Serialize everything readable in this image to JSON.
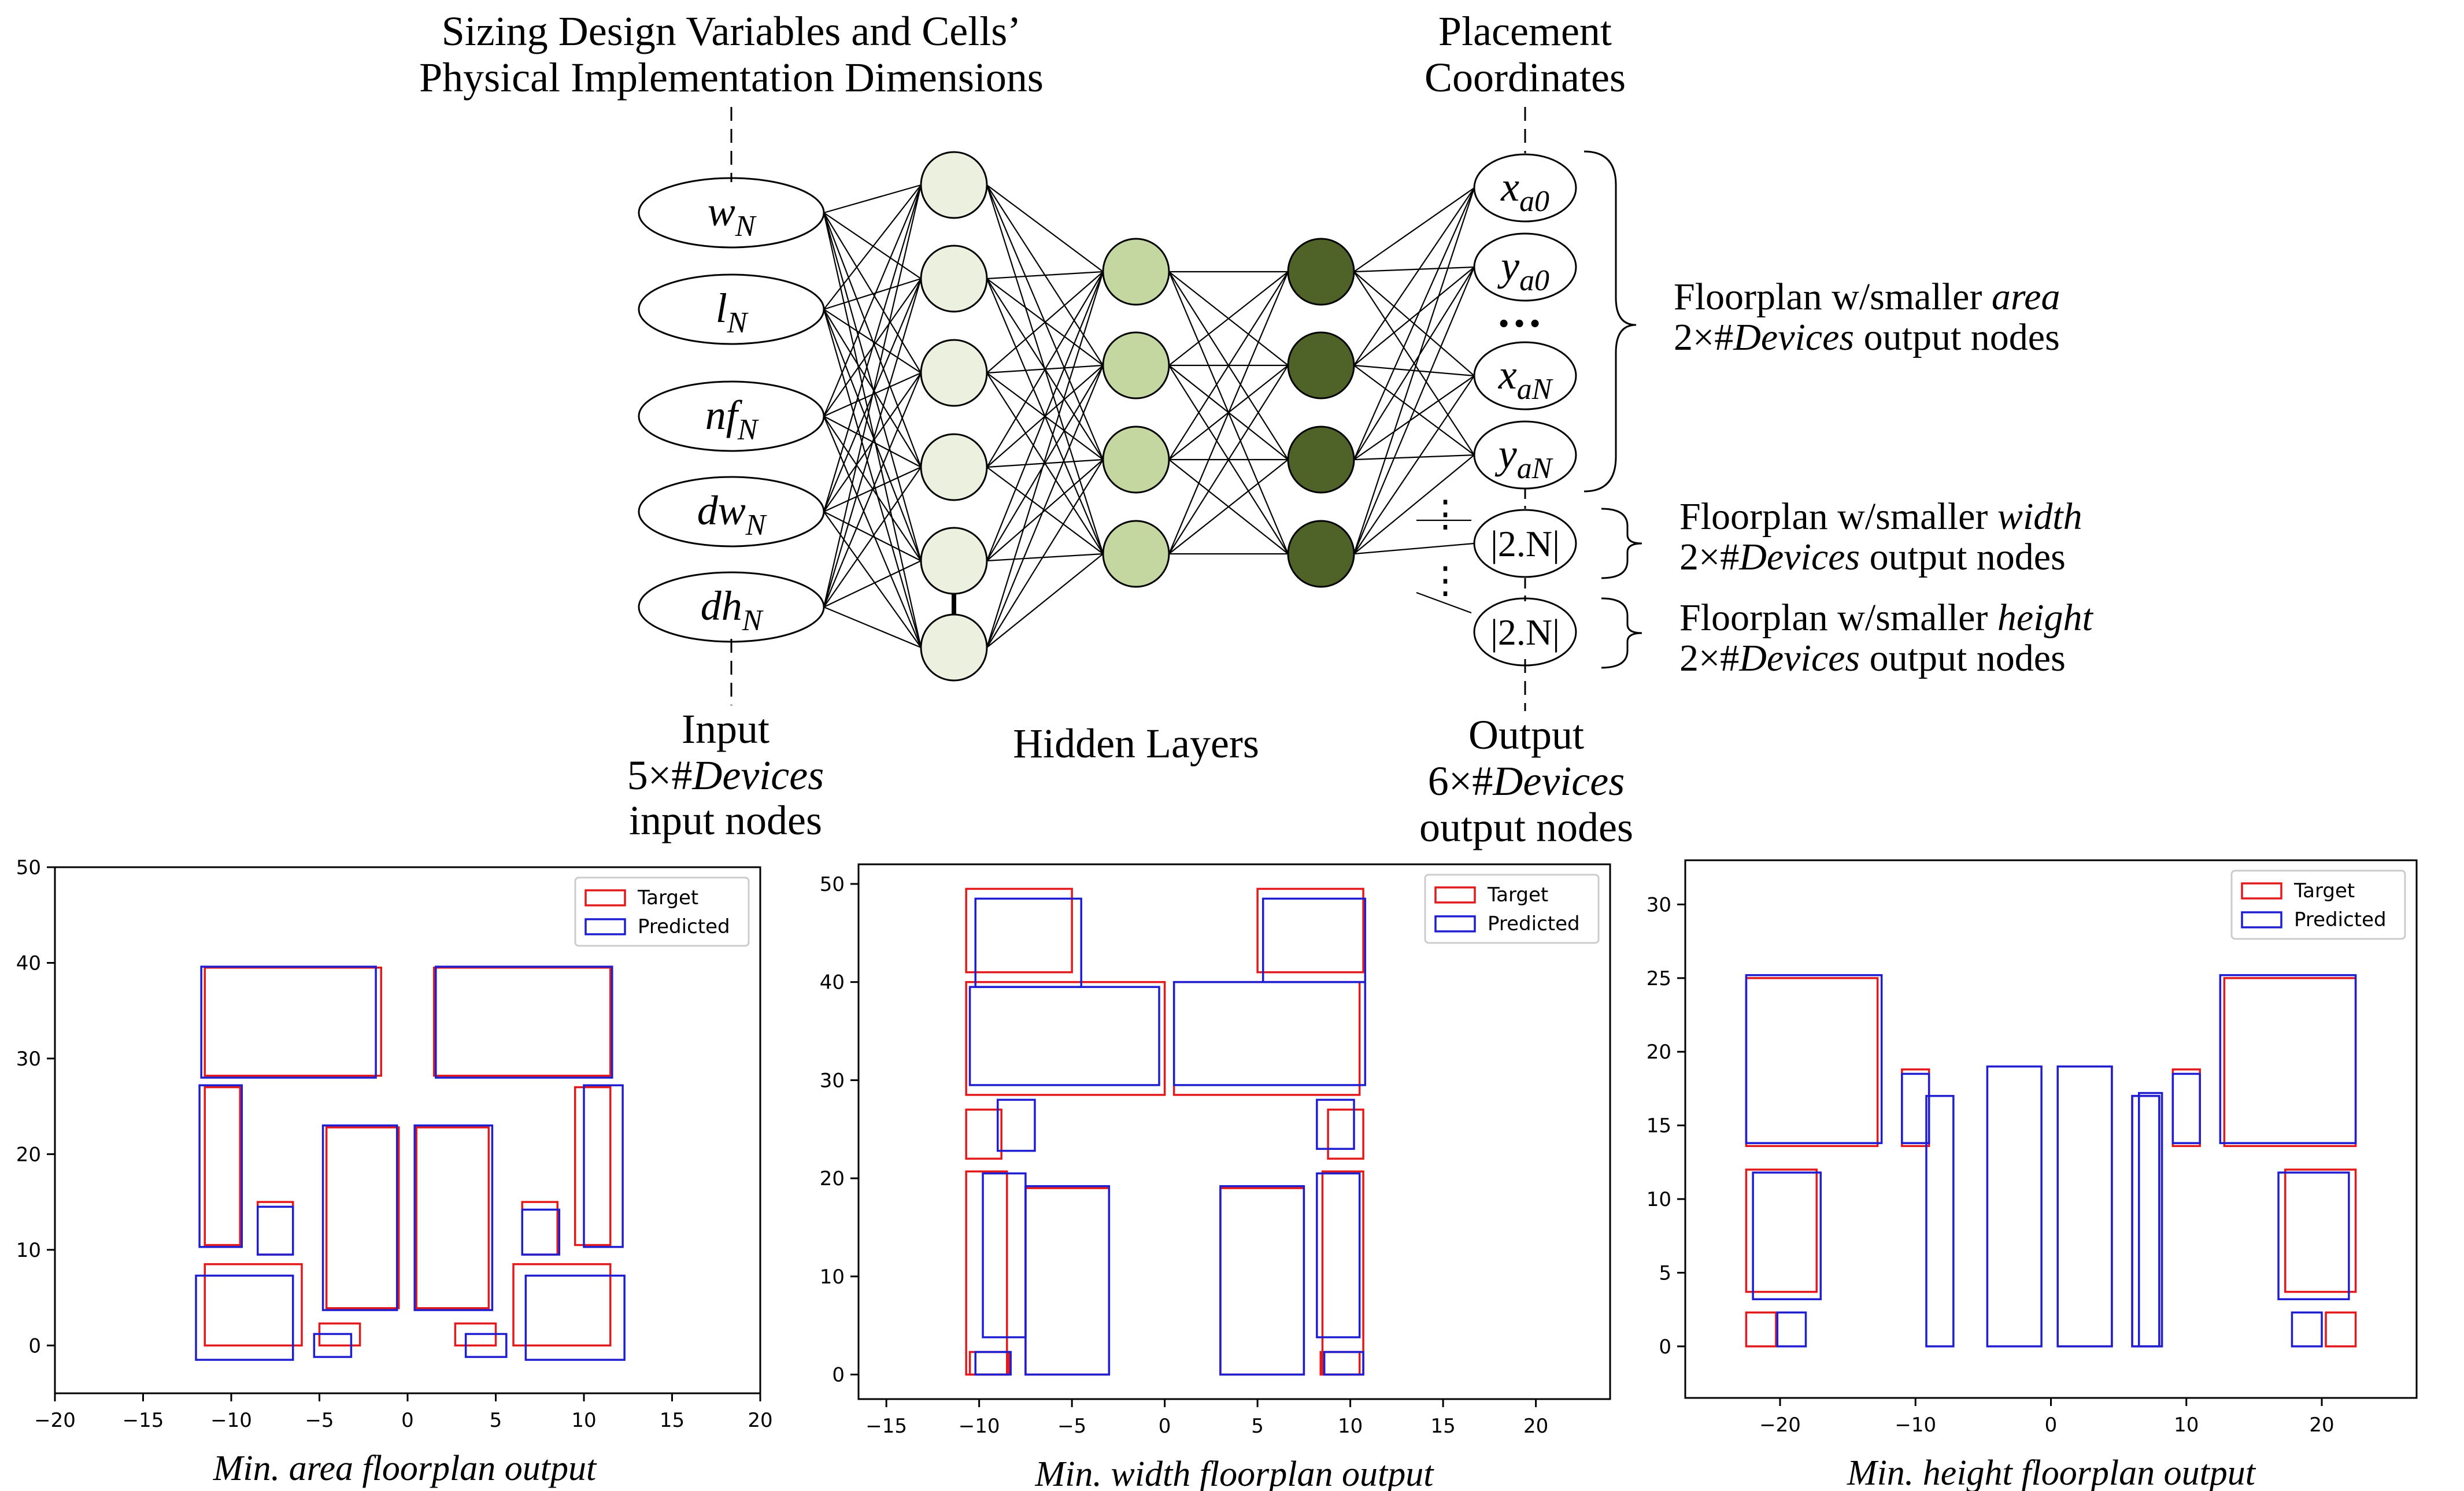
{
  "network": {
    "input_header": [
      "Sizing Design Variables and Cells’",
      "Physical Implementation Dimensions"
    ],
    "output_header": [
      "Placement",
      "Coordinates"
    ],
    "input_nodes": [
      {
        "base": "w",
        "sub": "N"
      },
      {
        "base": "l",
        "sub": "N"
      },
      {
        "base": "nf",
        "sub": "N"
      },
      {
        "base": "dw",
        "sub": "N"
      },
      {
        "base": "dh",
        "sub": "N"
      }
    ],
    "output_nodes": [
      {
        "base": "x",
        "sub": "a0"
      },
      {
        "base": "y",
        "sub": "a0"
      },
      {
        "base": "x",
        "sub": "aN"
      },
      {
        "base": "y",
        "sub": "aN"
      },
      {
        "base": "|2.N|",
        "sub": ""
      },
      {
        "base": "|2.N|",
        "sub": ""
      }
    ],
    "ellipsis_h": "…",
    "ellipsis_v": "⋮",
    "input_caption": {
      "line1": "Input",
      "line2_pre": "5×#",
      "line2_it": "Devices",
      "line3": "input nodes"
    },
    "hidden_caption": "Hidden Layers",
    "output_caption": {
      "line1": "Output",
      "line2_pre": "6×#",
      "line2_it": "Devices",
      "line3": "output nodes"
    },
    "groups": [
      {
        "pre": "Floorplan w/smaller ",
        "it": "area",
        "count_pre": "2×#",
        "count_it": "Devices",
        "count_post": " output nodes"
      },
      {
        "pre": "Floorplan w/smaller ",
        "it": "width",
        "count_pre": "2×#",
        "count_it": "Devices",
        "count_post": " output nodes"
      },
      {
        "pre": "Floorplan w/smaller ",
        "it": "height",
        "count_pre": "2×#",
        "count_it": "Devices",
        "count_post": " output nodes"
      }
    ],
    "colors": {
      "hidden1": "#ebf1de",
      "hidden2": "#c4d7a0",
      "hidden3": "#4f6228",
      "line": "#000000"
    }
  },
  "chart_data": [
    {
      "type": "rectangles",
      "title": "Min. area floorplan output",
      "xlim": [
        -20,
        20
      ],
      "ylim": [
        -5,
        50
      ],
      "xticks": [
        -20,
        -15,
        -10,
        -5,
        0,
        5,
        10,
        15,
        20
      ],
      "yticks": [
        0,
        10,
        20,
        30,
        40,
        50
      ],
      "legend": [
        "Target",
        "Predicted"
      ],
      "series": [
        {
          "name": "Target",
          "color": "#e31a1c",
          "rects": [
            [
              -11.5,
              28.2,
              -1.5,
              39.5
            ],
            [
              1.5,
              28.2,
              11.5,
              39.5
            ],
            [
              -11.5,
              10.5,
              -9.5,
              27.0
            ],
            [
              9.5,
              10.5,
              11.5,
              27.0
            ],
            [
              -8.5,
              9.5,
              -6.5,
              15.0
            ],
            [
              6.5,
              9.5,
              8.5,
              15.0
            ],
            [
              -4.6,
              3.9,
              -0.5,
              22.8
            ],
            [
              0.5,
              3.9,
              4.6,
              22.8
            ],
            [
              -11.5,
              0.0,
              -6.0,
              8.5
            ],
            [
              6.0,
              0.0,
              11.5,
              8.5
            ],
            [
              -5.0,
              0.0,
              -2.7,
              2.3
            ],
            [
              2.7,
              0.0,
              5.0,
              2.3
            ]
          ]
        },
        {
          "name": "Predicted",
          "color": "#1f1fd1",
          "rects": [
            [
              -11.7,
              28.0,
              -1.8,
              39.6
            ],
            [
              1.6,
              28.0,
              11.6,
              39.6
            ],
            [
              -11.8,
              10.3,
              -9.4,
              27.2
            ],
            [
              10.0,
              10.3,
              12.2,
              27.2
            ],
            [
              -8.5,
              9.5,
              -6.5,
              14.5
            ],
            [
              6.5,
              9.5,
              8.6,
              14.2
            ],
            [
              -4.8,
              3.7,
              -0.6,
              23.0
            ],
            [
              0.4,
              3.7,
              4.8,
              23.0
            ],
            [
              -12.0,
              -1.5,
              -6.5,
              7.3
            ],
            [
              6.7,
              -1.5,
              12.3,
              7.3
            ],
            [
              -5.3,
              -1.2,
              -3.2,
              1.2
            ],
            [
              3.3,
              -1.2,
              5.6,
              1.2
            ]
          ]
        }
      ]
    },
    {
      "type": "rectangles",
      "title": "Min. width floorplan output",
      "xlim": [
        -16.5,
        24
      ],
      "ylim": [
        -2.5,
        52
      ],
      "xticks": [
        -15,
        -10,
        -5,
        0,
        5,
        10,
        15,
        20
      ],
      "yticks": [
        0,
        10,
        20,
        30,
        40,
        50
      ],
      "legend": [
        "Target",
        "Predicted"
      ],
      "series": [
        {
          "name": "Target",
          "color": "#e31a1c",
          "rects": [
            [
              -10.7,
              41.0,
              -5.0,
              49.5
            ],
            [
              5.0,
              41.0,
              10.7,
              49.5
            ],
            [
              -10.7,
              28.5,
              0.0,
              40.0
            ],
            [
              0.5,
              28.5,
              10.5,
              40.0
            ],
            [
              -10.7,
              22.0,
              -8.8,
              27.0
            ],
            [
              8.8,
              22.0,
              10.7,
              27.0
            ],
            [
              -10.7,
              0.0,
              -8.5,
              20.7
            ],
            [
              8.5,
              0.0,
              10.7,
              20.7
            ],
            [
              -7.5,
              0.0,
              -3.0,
              19.0
            ],
            [
              3.0,
              0.0,
              7.5,
              19.0
            ],
            [
              -10.5,
              0.0,
              -8.4,
              2.3
            ],
            [
              8.4,
              0.0,
              10.5,
              2.3
            ]
          ]
        },
        {
          "name": "Predicted",
          "color": "#1f1fd1",
          "rects": [
            [
              -10.2,
              39.5,
              -4.5,
              48.5
            ],
            [
              5.3,
              40.0,
              10.8,
              48.5
            ],
            [
              -10.5,
              29.5,
              -0.3,
              39.5
            ],
            [
              0.5,
              29.5,
              10.8,
              40.0
            ],
            [
              -9.0,
              22.8,
              -7.0,
              28.0
            ],
            [
              8.2,
              23.0,
              10.2,
              28.0
            ],
            [
              -9.8,
              3.8,
              -7.5,
              20.5
            ],
            [
              8.2,
              3.8,
              10.5,
              20.5
            ],
            [
              -7.5,
              0.0,
              -3.0,
              19.2
            ],
            [
              3.0,
              0.0,
              7.5,
              19.2
            ],
            [
              -10.2,
              0.0,
              -8.3,
              2.3
            ],
            [
              8.6,
              0.0,
              10.7,
              2.3
            ]
          ]
        }
      ]
    },
    {
      "type": "rectangles",
      "title": "Min. height floorplan output",
      "xlim": [
        -27,
        27
      ],
      "ylim": [
        -3.5,
        33
      ],
      "xticks": [
        -20,
        -10,
        0,
        10,
        20
      ],
      "yticks": [
        0,
        5,
        10,
        15,
        20,
        25,
        30
      ],
      "legend": [
        "Target",
        "Predicted"
      ],
      "series": [
        {
          "name": "Target",
          "color": "#e31a1c",
          "rects": [
            [
              -22.5,
              13.6,
              -12.8,
              25.0
            ],
            [
              12.8,
              13.6,
              22.5,
              25.0
            ],
            [
              -22.5,
              3.7,
              -17.3,
              12.0
            ],
            [
              17.3,
              3.7,
              22.5,
              12.0
            ],
            [
              -11.0,
              13.6,
              -9.0,
              18.8
            ],
            [
              9.0,
              13.6,
              11.0,
              18.8
            ],
            [
              -22.5,
              0.0,
              -20.3,
              2.3
            ],
            [
              20.3,
              0.0,
              22.5,
              2.3
            ],
            [
              0.5,
              0.0,
              4.5,
              19.0
            ],
            [
              6.0,
              0.0,
              8.0,
              17.0
            ]
          ]
        },
        {
          "name": "Predicted",
          "color": "#1f1fd1",
          "rects": [
            [
              -22.5,
              13.8,
              -12.5,
              25.2
            ],
            [
              12.5,
              13.8,
              22.5,
              25.2
            ],
            [
              -22.0,
              3.2,
              -17.0,
              11.8
            ],
            [
              16.8,
              3.2,
              22.0,
              11.8
            ],
            [
              -11.0,
              13.8,
              -9.0,
              18.5
            ],
            [
              9.0,
              13.8,
              11.0,
              18.5
            ],
            [
              -20.2,
              0.0,
              -18.1,
              2.3
            ],
            [
              17.8,
              0.0,
              20.0,
              2.3
            ],
            [
              -9.2,
              0.0,
              -7.2,
              17.0
            ],
            [
              -4.7,
              0.0,
              -0.7,
              19.0
            ],
            [
              0.5,
              0.0,
              4.5,
              19.0
            ],
            [
              6.0,
              0.0,
              8.0,
              17.0
            ],
            [
              6.5,
              0.0,
              8.2,
              17.2
            ]
          ]
        }
      ]
    }
  ]
}
